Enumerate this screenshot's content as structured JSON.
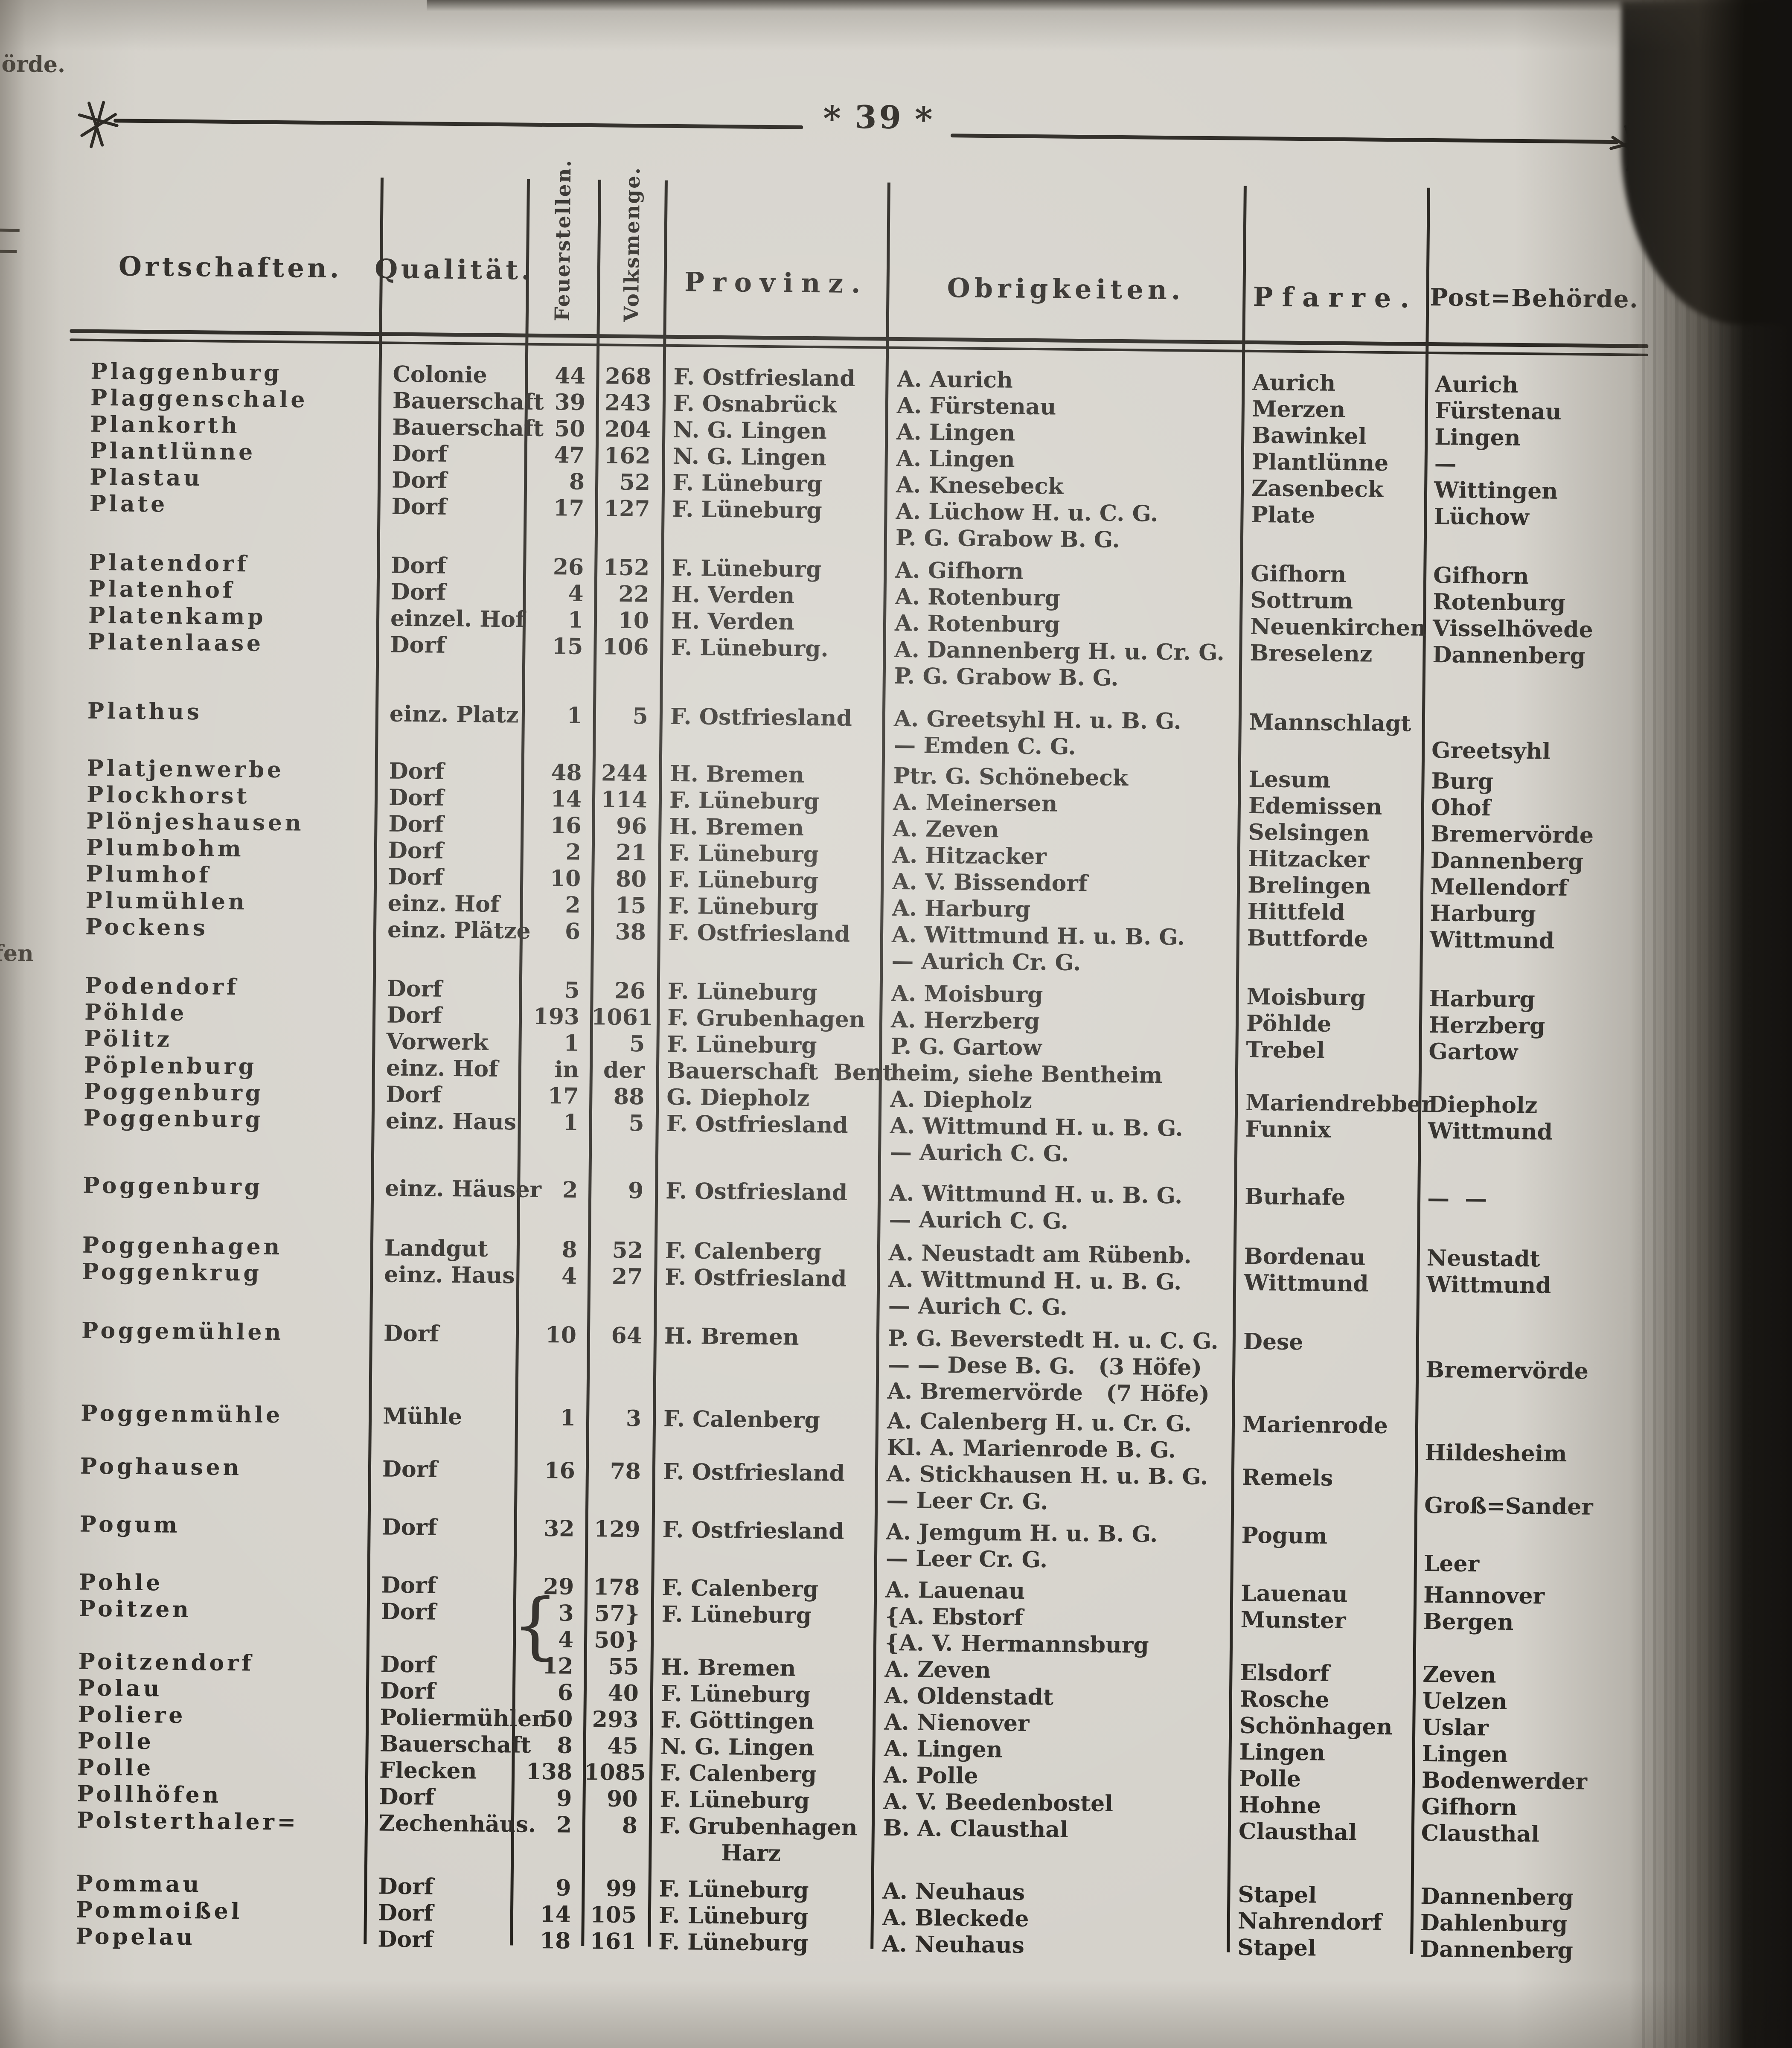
{
  "page": {
    "number": "39",
    "asterisk": "*"
  },
  "colors": {
    "paper": "#d5d2cb",
    "ink": "#2b2824",
    "rule": "#24211c"
  },
  "gutter": {
    "fragment_top": "örde.",
    "fragment_mid": "fen"
  },
  "table": {
    "headers": {
      "ort": "Ortschaften.",
      "qual": "Qualität.",
      "feuer": "Feuerstellen.",
      "volks": "Volksmenge.",
      "prov": "Provinz.",
      "obr": "Obrigkeiten.",
      "pfarre": "Pfarre.",
      "post": "Post=Behörde."
    },
    "rows": [
      {
        "ort": "Plaggenburg",
        "qual": "Colonie",
        "feuer": "44",
        "volks": "268",
        "prov": "F. Ostfriesland",
        "obr": "A. Aurich",
        "pfarre": "Aurich",
        "post": "Aurich"
      },
      {
        "ort": "Plaggenschale",
        "qual": "Bauerschaft",
        "feuer": "39",
        "volks": "243",
        "prov": "F. Osnabrück",
        "obr": "A. Fürstenau",
        "pfarre": "Merzen",
        "post": "Fürstenau"
      },
      {
        "ort": "Plankorth",
        "qual": "Bauerschaft",
        "feuer": "50",
        "volks": "204",
        "prov": "N. G. Lingen",
        "obr": "A. Lingen",
        "pfarre": "Bawinkel",
        "post": "Lingen"
      },
      {
        "ort": "Plantlünne",
        "qual": "Dorf",
        "feuer": "47",
        "volks": "162",
        "prov": "N. G. Lingen",
        "obr": "A. Lingen",
        "pfarre": "Plantlünne",
        "post": "—"
      },
      {
        "ort": "Plastau",
        "qual": "Dorf",
        "feuer": "8",
        "volks": "52",
        "prov": "F. Lüneburg",
        "obr": "A. Knesebeck",
        "pfarre": "Zasenbeck",
        "post": "Wittingen"
      },
      {
        "ort": "Plate",
        "qual": "Dorf",
        "feuer": "17",
        "volks": "127",
        "prov": "F. Lüneburg",
        "obr": [
          "A. Lüchow H. u. C. G.",
          "P. G. Grabow B. G."
        ],
        "pfarre": "Plate",
        "post": "Lüchow"
      },
      {
        "gap": 14,
        "ort": "Platendorf",
        "qual": "Dorf",
        "feuer": "26",
        "volks": "152",
        "prov": "F. Lüneburg",
        "obr": "A. Gifhorn",
        "pfarre": "Gifhorn",
        "post": "Gifhorn"
      },
      {
        "ort": "Platenhof",
        "qual": "Dorf",
        "feuer": "4",
        "volks": "22",
        "prov": "H. Verden",
        "obr": "A. Rotenburg",
        "pfarre": "Sottrum",
        "post": "Rotenburg"
      },
      {
        "ort": "Platenkamp",
        "qual": "einzel. Hof",
        "feuer": "1",
        "volks": "10",
        "prov": "H. Verden",
        "obr": "A. Rotenburg",
        "pfarre": "Neuenkirchen",
        "post": "Visselhövede"
      },
      {
        "ort": "Platenlaase",
        "qual": "Dorf",
        "feuer": "15",
        "volks": "106",
        "prov": "F. Lüneburg.",
        "obr": [
          "A. Dannenberg H. u. Cr. G.",
          "P. G. Grabow B. G."
        ],
        "pfarre": "Breselenz",
        "post": "Dannenberg"
      },
      {
        "gap": 38,
        "ort": "Plathus",
        "qual": "einz. Platz",
        "feuer": "1",
        "volks": "5",
        "prov": "F. Ostfriesland",
        "obr": [
          "A. Greetsyhl H. u. B. G.",
          "— Emden C. G."
        ],
        "pfarre": "Mannschlagt",
        "post": [
          "",
          "Greetsyhl"
        ]
      },
      {
        "gap": 10,
        "ort": "Platjenwerbe",
        "qual": "Dorf",
        "feuer": "48",
        "volks": "244",
        "prov": "H. Bremen",
        "obr": "Ptr. G. Schönebeck",
        "pfarre": "Lesum",
        "post": "Burg"
      },
      {
        "ort": "Plockhorst",
        "qual": "Dorf",
        "feuer": "14",
        "volks": "114",
        "prov": "F. Lüneburg",
        "obr": "A. Meinersen",
        "pfarre": "Edemissen",
        "post": "Ohof"
      },
      {
        "ort": "Plönjeshausen",
        "qual": "Dorf",
        "feuer": "16",
        "volks": "96",
        "prov": "H. Bremen",
        "obr": "A. Zeven",
        "pfarre": "Selsingen",
        "post": "Bremervörde"
      },
      {
        "ort": "Plumbohm",
        "qual": "Dorf",
        "feuer": "2",
        "volks": "21",
        "prov": "F. Lüneburg",
        "obr": "A. Hitzacker",
        "pfarre": "Hitzacker",
        "post": "Dannenberg"
      },
      {
        "ort": "Plumhof",
        "qual": "Dorf",
        "feuer": "10",
        "volks": "80",
        "prov": "F. Lüneburg",
        "obr": "A. V. Bissendorf",
        "pfarre": "Brelingen",
        "post": "Mellendorf"
      },
      {
        "ort": "Plumühlen",
        "qual": "einz. Hof",
        "feuer": "2",
        "volks": "15",
        "prov": "F. Lüneburg",
        "obr": "A. Harburg",
        "pfarre": "Hittfeld",
        "post": "Harburg"
      },
      {
        "ort": "Pockens",
        "qual": "einz. Plätze",
        "feuer": "6",
        "volks": "38",
        "prov": "F. Ostfriesland",
        "obr": [
          "A. Wittmund H. u. B. G.",
          "— Aurich Cr. G."
        ],
        "pfarre": "Buttforde",
        "post": "Wittmund"
      },
      {
        "gap": 14,
        "ort": "Podendorf",
        "qual": "Dorf",
        "feuer": "5",
        "volks": "26",
        "prov": "F. Lüneburg",
        "obr": "A. Moisburg",
        "pfarre": "Moisburg",
        "post": "Harburg"
      },
      {
        "ort": "Pöhlde",
        "qual": "Dorf",
        "feuer": "193",
        "volks": "1061",
        "prov": "F. Grubenhagen",
        "obr": "A. Herzberg",
        "pfarre": "Pöhlde",
        "post": "Herzberg"
      },
      {
        "ort": "Pölitz",
        "qual": "Vorwerk",
        "feuer": "1",
        "volks": "5",
        "prov": "F. Lüneburg",
        "obr": "P. G. Gartow",
        "pfarre": "Trebel",
        "post": "Gartow"
      },
      {
        "ort": "Pöplenburg",
        "qual": "einz. Hof",
        "feuer": "in",
        "volks": "der",
        "prov": "Bauerschaft  Bent",
        "obr": "heim, siehe Bentheim",
        "pfarre": "",
        "post": ""
      },
      {
        "ort": "Poggenburg",
        "qual": "Dorf",
        "feuer": "17",
        "volks": "88",
        "prov": "G. Diepholz",
        "obr": "A. Diepholz",
        "pfarre": "Mariendrebber",
        "post": "Diepholz"
      },
      {
        "ort": "Poggenburg",
        "qual": "einz. Haus",
        "feuer": "1",
        "volks": "5",
        "prov": "F. Ostfriesland",
        "obr": [
          "A. Wittmund H. u. B. G.",
          "— Aurich C. G."
        ],
        "pfarre": "Funnix",
        "post": "Wittmund"
      },
      {
        "gap": 34,
        "ort": "Poggenburg",
        "qual": "einz. Häuser",
        "feuer": "2",
        "volks": "9",
        "prov": "F. Ostfriesland",
        "obr": [
          "A. Wittmund H. u. B. G.",
          "— Aurich C. G."
        ],
        "pfarre": "Burhafe",
        "post": "—  —"
      },
      {
        "gap": 16,
        "ort": "Poggenhagen",
        "qual": "Landgut",
        "feuer": "8",
        "volks": "52",
        "prov": "F. Calenberg",
        "obr": "A. Neustadt am Rübenb.",
        "pfarre": "Bordenau",
        "post": "Neustadt"
      },
      {
        "ort": "Poggenkrug",
        "qual": "einz. Haus",
        "feuer": "4",
        "volks": "27",
        "prov": "F. Ostfriesland",
        "obr": [
          "A. Wittmund H. u. B. G.",
          "— Aurich C. G."
        ],
        "pfarre": "Wittmund",
        "post": "Wittmund"
      },
      {
        "gap": 14,
        "ort": "Poggemühlen",
        "qual": "Dorf",
        "feuer": "10",
        "volks": "64",
        "prov": "H. Bremen",
        "obr": [
          "P. G. Beverstedt H. u. C. G.",
          "— — Dese B. G.   (3 Höfe)",
          "A. Bremervörde   (7 Höfe)"
        ],
        "pfarre": "Dese",
        "post": [
          "",
          "Bremervörde"
        ]
      },
      {
        "gap": 8,
        "ort": "Poggenmühle",
        "qual": "Mühle",
        "feuer": "1",
        "volks": "3",
        "prov": "F. Calenberg",
        "obr": [
          "A. Calenberg H. u. Cr. G.",
          "Kl. A. Marienrode B. G."
        ],
        "pfarre": "Marienrode",
        "post": [
          "",
          "Hildesheim"
        ]
      },
      {
        "ort": "Poghausen",
        "qual": "Dorf",
        "feuer": "16",
        "volks": "78",
        "prov": "F. Ostfriesland",
        "obr": [
          "A. Stickhausen H. u. B. G.",
          "— Leer Cr. G."
        ],
        "pfarre": "Remels",
        "post": [
          "",
          "Groß=Sander"
        ]
      },
      {
        "gap": 12,
        "ort": "Pogum",
        "qual": "Dorf",
        "feuer": "32",
        "volks": "129",
        "prov": "F. Ostfriesland",
        "obr": [
          "A. Jemgum H. u. B. G.",
          "— Leer Cr. G."
        ],
        "pfarre": "Pogum",
        "post": [
          "",
          "Leer"
        ]
      },
      {
        "gap": 12,
        "ort": "Pohle",
        "qual": "Dorf",
        "feuer": "29",
        "volks": "178",
        "prov": "F. Calenberg",
        "obr": "A. Lauenau",
        "pfarre": "Lauenau",
        "post": "Hannover"
      },
      {
        "ort": "Poitzen",
        "qual": "Dorf",
        "feuer": [
          "3",
          "4"
        ],
        "feuer_brace": "{",
        "volks": [
          "57}",
          "50}"
        ],
        "prov": "F. Lüneburg",
        "obr": [
          "{A. Ebstorf",
          "{A. V. Hermannsburg"
        ],
        "pfarre": "Munster",
        "post": "Bergen"
      },
      {
        "ort": "Poitzendorf",
        "qual": "Dorf",
        "feuer": "12",
        "volks": "55",
        "prov": "H. Bremen",
        "obr": "A. Zeven",
        "pfarre": "Elsdorf",
        "post": "Zeven"
      },
      {
        "ort": "Polau",
        "qual": "Dorf",
        "feuer": "6",
        "volks": "40",
        "prov": "F. Lüneburg",
        "obr": "A. Oldenstadt",
        "pfarre": "Rosche",
        "post": "Uelzen"
      },
      {
        "ort": "Poliere",
        "qual": "Poliermühlen",
        "feuer": "50",
        "volks": "293",
        "prov": "F. Göttingen",
        "obr": "A. Nienover",
        "pfarre": "Schönhagen",
        "post": "Uslar"
      },
      {
        "ort": "Polle",
        "qual": "Bauerschaft",
        "feuer": "8",
        "volks": "45",
        "prov": "N. G. Lingen",
        "obr": "A. Lingen",
        "pfarre": "Lingen",
        "post": "Lingen"
      },
      {
        "ort": "Polle",
        "qual": "Flecken",
        "feuer": "138",
        "volks": "1085",
        "prov": "F. Calenberg",
        "obr": "A. Polle",
        "pfarre": "Polle",
        "post": "Bodenwerder"
      },
      {
        "ort": "Pollhöfen",
        "qual": "Dorf",
        "feuer": "9",
        "volks": "90",
        "prov": "F. Lüneburg",
        "obr": "A. V. Beedenbostel",
        "pfarre": "Hohne",
        "post": "Gifhorn"
      },
      {
        "ort": "Polsterthaler=",
        "qual": "Zechenhäus.",
        "feuer": "2",
        "volks": "8",
        "prov": [
          "F. Grubenhagen",
          "        Harz"
        ],
        "obr": "B. A. Clausthal",
        "pfarre": "Clausthal",
        "post": "Clausthal"
      },
      {
        "gap": 24,
        "ort": "Pommau",
        "qual": "Dorf",
        "feuer": "9",
        "volks": "99",
        "prov": "F. Lüneburg",
        "obr": "A. Neuhaus",
        "pfarre": "Stapel",
        "post": "Dannenberg"
      },
      {
        "ort": "Pommoißel",
        "qual": "Dorf",
        "feuer": "14",
        "volks": "105",
        "prov": "F. Lüneburg",
        "obr": "A. Bleckede",
        "pfarre": "Nahrendorf",
        "post": "Dahlenburg"
      },
      {
        "ort": "Popelau",
        "qual": "Dorf",
        "feuer": "18",
        "volks": "161",
        "prov": "F. Lüneburg",
        "obr": "A. Neuhaus",
        "pfarre": "Stapel",
        "post": "Dannenberg"
      }
    ]
  }
}
